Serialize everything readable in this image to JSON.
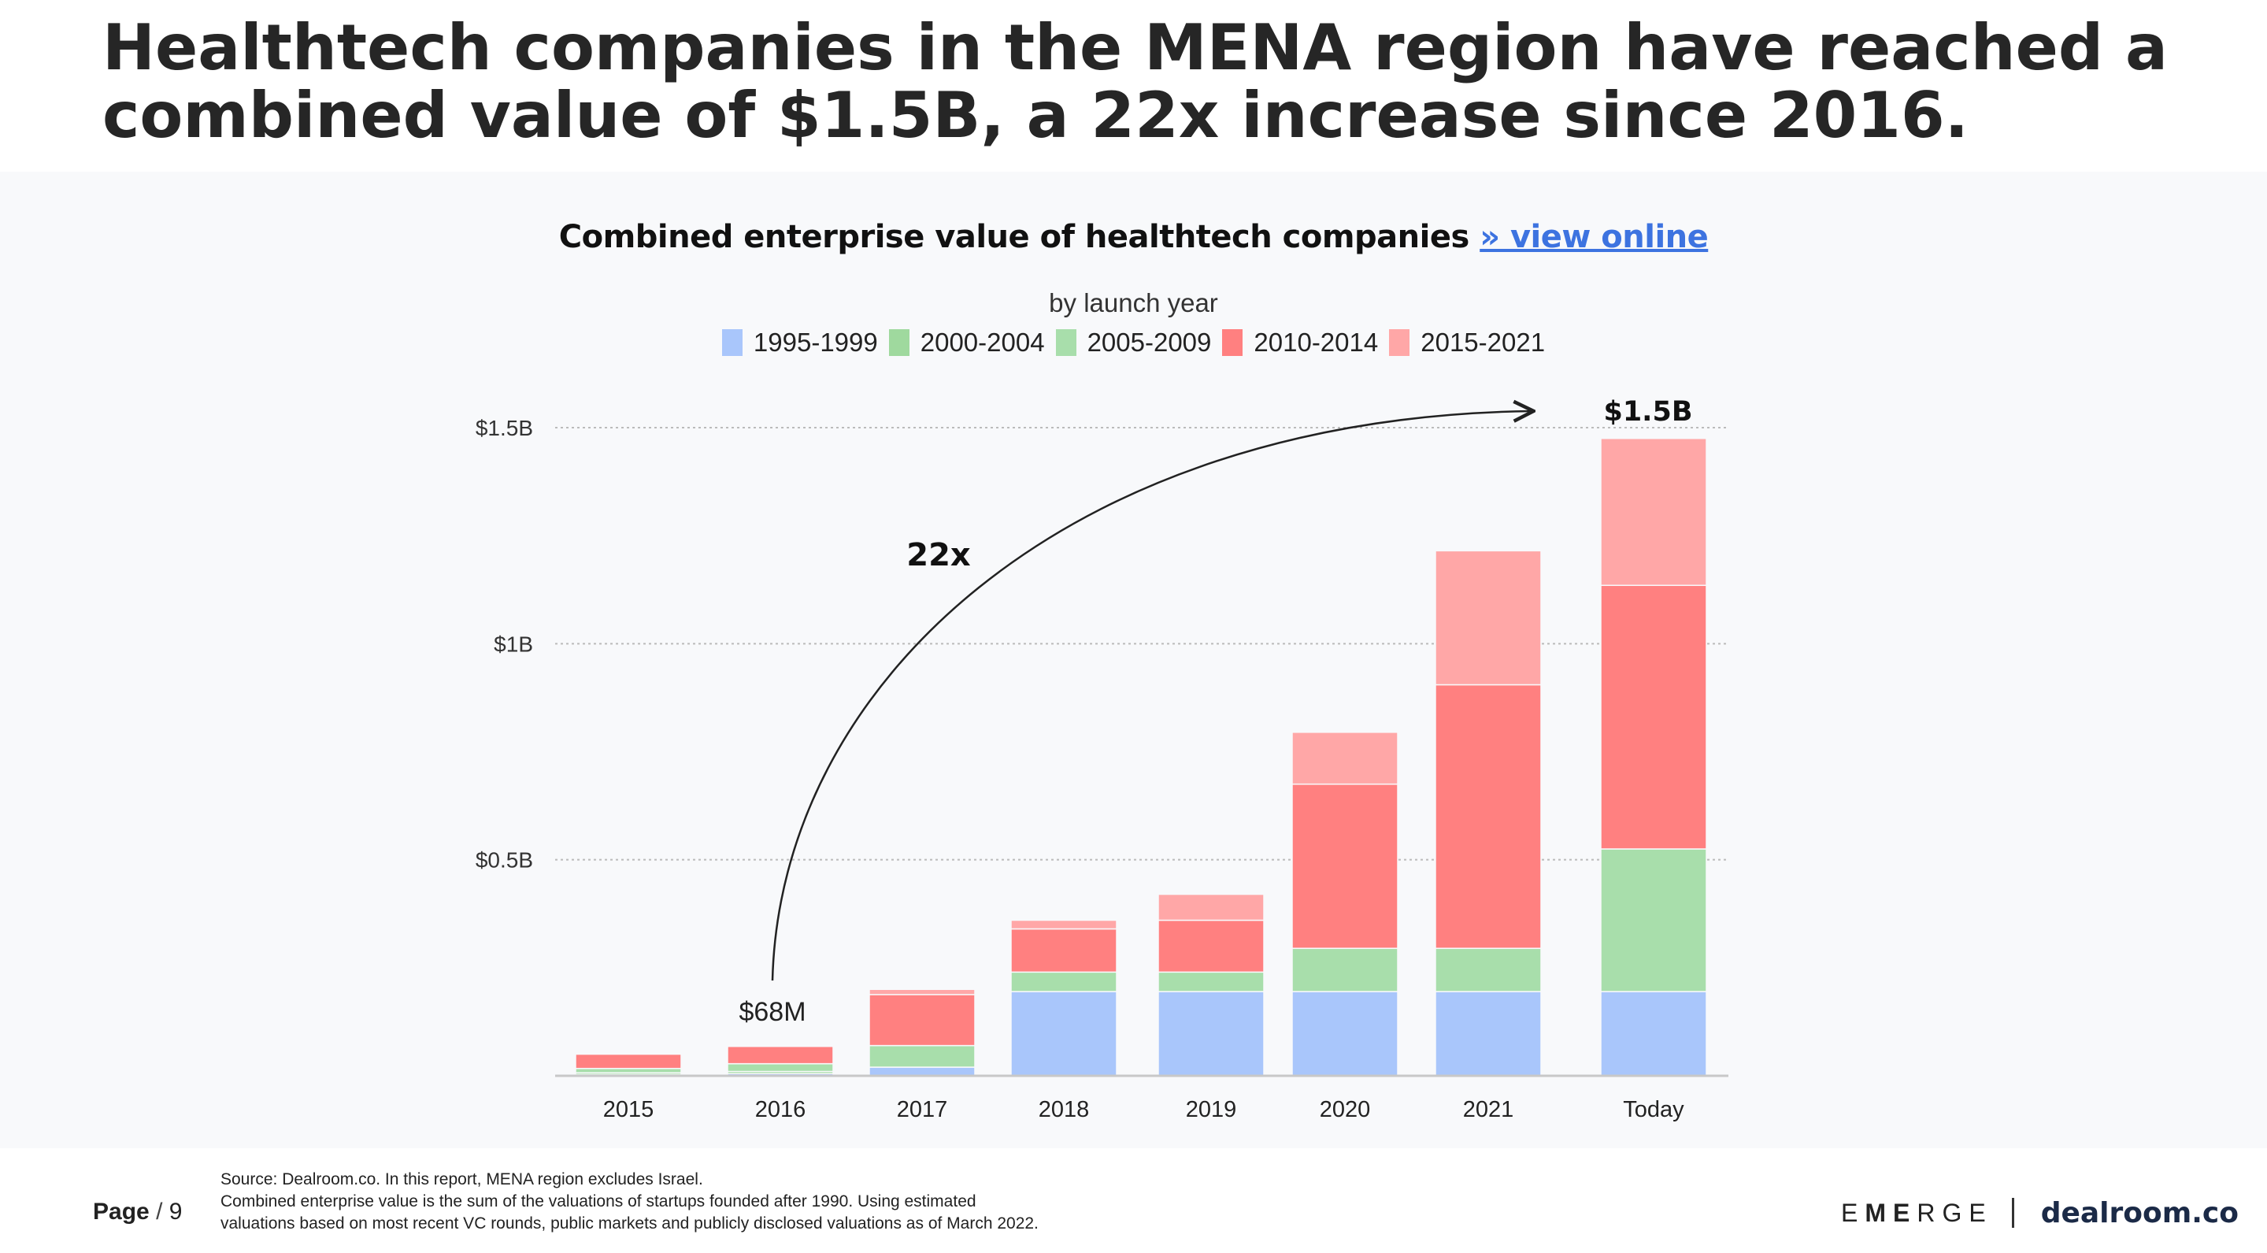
{
  "headline": {
    "line1": "Healthtech companies in the MENA region have reached a",
    "line2": "combined value of $1.5B, a 22x increase since 2016."
  },
  "chart_header": {
    "title": "Combined enterprise value of healthtech companies",
    "link_label": "» view online",
    "subtitle": "by launch year"
  },
  "chart_data": {
    "type": "bar",
    "stacked": true,
    "title": "Combined enterprise value of healthtech companies",
    "subtitle": "by launch year",
    "xlabel": "",
    "ylabel": "",
    "unit": "USD billions",
    "ylim": [
      0,
      1.5
    ],
    "yticks": [
      {
        "value": 0.5,
        "label": "$0.5B"
      },
      {
        "value": 1.0,
        "label": "$1B"
      },
      {
        "value": 1.5,
        "label": "$1.5B"
      }
    ],
    "grid": "horizontal dotted",
    "legend_position": "top-center",
    "categories": [
      "2015",
      "2016",
      "2017",
      "2018",
      "2019",
      "2020",
      "2021",
      "Today"
    ],
    "series": [
      {
        "name": "1995-1999",
        "color": "#a9c6fb",
        "values": [
          0.003,
          0.005,
          0.02,
          0.195,
          0.195,
          0.195,
          0.195,
          0.195
        ]
      },
      {
        "name": "2000-2004",
        "color": "#9fd99e",
        "values": [
          0.004,
          0.005,
          0.0,
          0.0,
          0.0,
          0.0,
          0.0,
          0.0
        ]
      },
      {
        "name": "2005-2009",
        "color": "#a8deab",
        "values": [
          0.01,
          0.018,
          0.05,
          0.045,
          0.045,
          0.1,
          0.1,
          0.33
        ]
      },
      {
        "name": "2010-2014",
        "color": "#ff8080",
        "values": [
          0.033,
          0.04,
          0.118,
          0.1,
          0.12,
          0.38,
          0.61,
          0.61
        ]
      },
      {
        "name": "2015-2021",
        "color": "#ffa7a7",
        "values": [
          0.0,
          0.0,
          0.012,
          0.02,
          0.06,
          0.12,
          0.31,
          0.34
        ]
      }
    ],
    "annotations": [
      {
        "category": "2016",
        "label": "$68M"
      },
      {
        "category": "Today",
        "label": "$1.5B"
      },
      {
        "label": "22x",
        "from": "2016",
        "to": "Today"
      }
    ]
  },
  "footer": {
    "page_label": "Page",
    "page_separator": "/",
    "page_number": "9",
    "source_line1": "Source: Dealroom.co. In this report, MENA region excludes Israel.",
    "source_line2": "Combined enterprise value is the sum of the valuations of startups founded after 1990. Using estimated",
    "source_line3": "valuations based on most recent VC rounds, public markets and publicly disclosed valuations as of March 2022.",
    "brand_emerge_pre": "E",
    "brand_emerge_bold": "ME",
    "brand_emerge_post": "RGE",
    "brand_dealroom": "dealroom.co"
  },
  "colors": {
    "link": "#3d73e0",
    "panel_background": "#f8f9fb",
    "axis": "#c8c8c8",
    "gridline": "#bbbbbb"
  }
}
